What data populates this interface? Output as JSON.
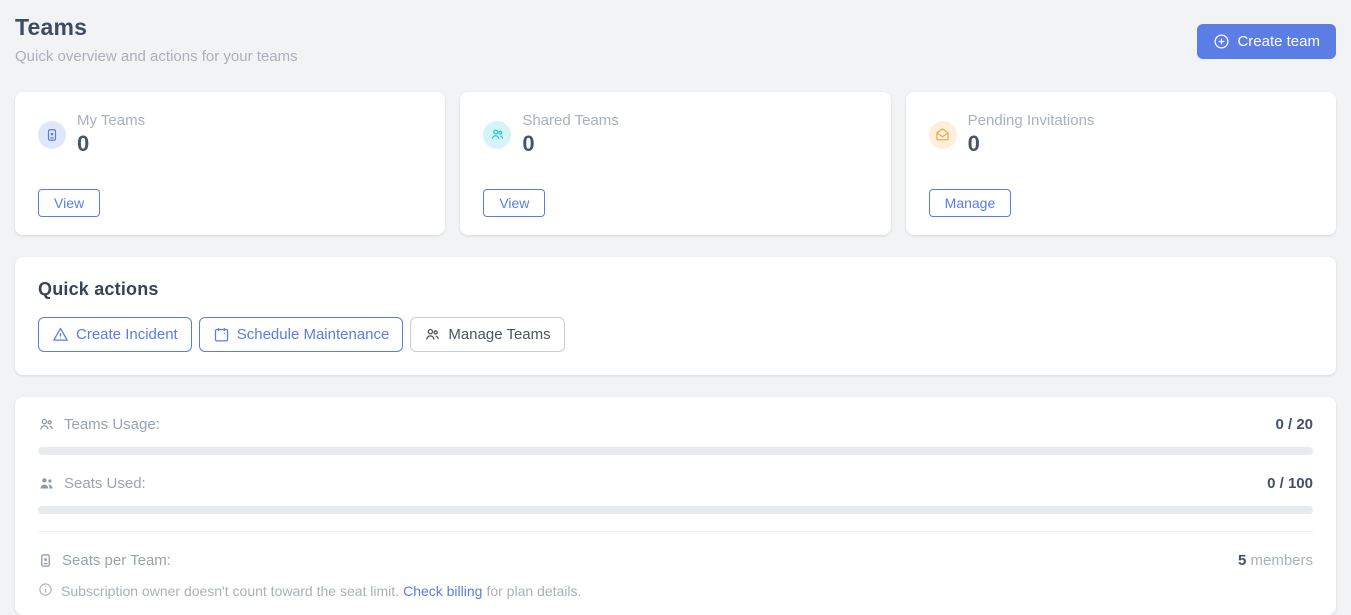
{
  "header": {
    "title": "Teams",
    "subtitle": "Quick overview and actions for your teams",
    "create_team_label": "Create team"
  },
  "stat_cards": [
    {
      "label": "My Teams",
      "value": "0",
      "action_label": "View",
      "icon": "id-badge-icon",
      "icon_color": "#5a7de6",
      "icon_bg": "#dfe7fb"
    },
    {
      "label": "Shared Teams",
      "value": "0",
      "action_label": "View",
      "icon": "users-icon",
      "icon_color": "#2cc5d2",
      "icon_bg": "#d5f4f7"
    },
    {
      "label": "Pending Invitations",
      "value": "0",
      "action_label": "Manage",
      "icon": "envelope-open-icon",
      "icon_color": "#f0a23d",
      "icon_bg": "#fdf0da"
    }
  ],
  "quick_actions": {
    "title": "Quick actions",
    "buttons": [
      {
        "label": "Create Incident",
        "icon": "warning-triangle-icon",
        "style": "accent"
      },
      {
        "label": "Schedule Maintenance",
        "icon": "calendar-icon",
        "style": "accent"
      },
      {
        "label": "Manage Teams",
        "icon": "users-icon",
        "style": "neutral"
      }
    ]
  },
  "usage": {
    "rows": [
      {
        "label": "Teams Usage:",
        "used": 0,
        "limit": 20,
        "value_text": "0 / 20",
        "icon": "users-outline-icon"
      },
      {
        "label": "Seats Used:",
        "used": 0,
        "limit": 100,
        "value_text": "0 / 100",
        "icon": "users-filled-icon"
      }
    ],
    "seats_per_team": {
      "label": "Seats per Team:",
      "value": "5",
      "unit": "members",
      "icon": "id-badge-icon"
    },
    "note": {
      "text": "Subscription owner doesn't count toward the seat limit.",
      "link_label": "Check billing",
      "suffix": "for plan details."
    }
  },
  "colors": {
    "accent_blue": "#5a7de6",
    "teal": "#2cc5d2",
    "orange": "#f0a23d",
    "page_bg": "#f2f3f4",
    "heading": "#3e4c63",
    "muted_text": "#a9b1bc",
    "value_text": "#44506a",
    "progress_track": "#e8ebee"
  }
}
